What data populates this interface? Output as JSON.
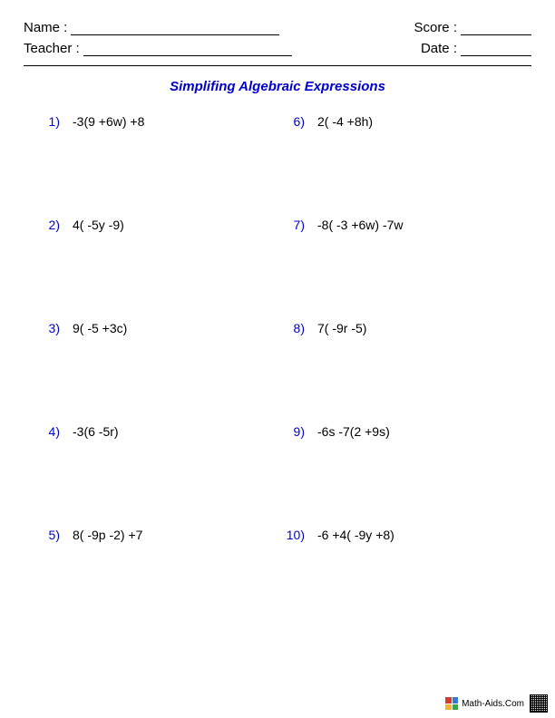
{
  "header": {
    "name_label": "Name :",
    "teacher_label": "Teacher :",
    "score_label": "Score :",
    "date_label": "Date :"
  },
  "title": "Simplifing Algebraic Expressions",
  "colors": {
    "number_color": "#0000cc",
    "title_color": "#0000cc",
    "text_color": "#000000",
    "background": "#ffffff"
  },
  "problems_left": [
    {
      "num": "1)",
      "expr": "-3(9 +6w) +8"
    },
    {
      "num": "2)",
      "expr": "4( -5y -9)"
    },
    {
      "num": "3)",
      "expr": "9( -5 +3c)"
    },
    {
      "num": "4)",
      "expr": "-3(6 -5r)"
    },
    {
      "num": "5)",
      "expr": "8( -9p -2) +7"
    }
  ],
  "problems_right": [
    {
      "num": "6)",
      "expr": "2( -4 +8h)"
    },
    {
      "num": "7)",
      "expr": "-8( -3 +6w) -7w"
    },
    {
      "num": "8)",
      "expr": "7( -9r -5)"
    },
    {
      "num": "9)",
      "expr": "-6s -7(2 +9s)"
    },
    {
      "num": "10)",
      "expr": "-6 +4( -9y +8)"
    }
  ],
  "footer": {
    "site": "Math-Aids.Com",
    "icon_colors": [
      "#d43a2f",
      "#3a78d4",
      "#f0b62f",
      "#39a84a"
    ]
  }
}
